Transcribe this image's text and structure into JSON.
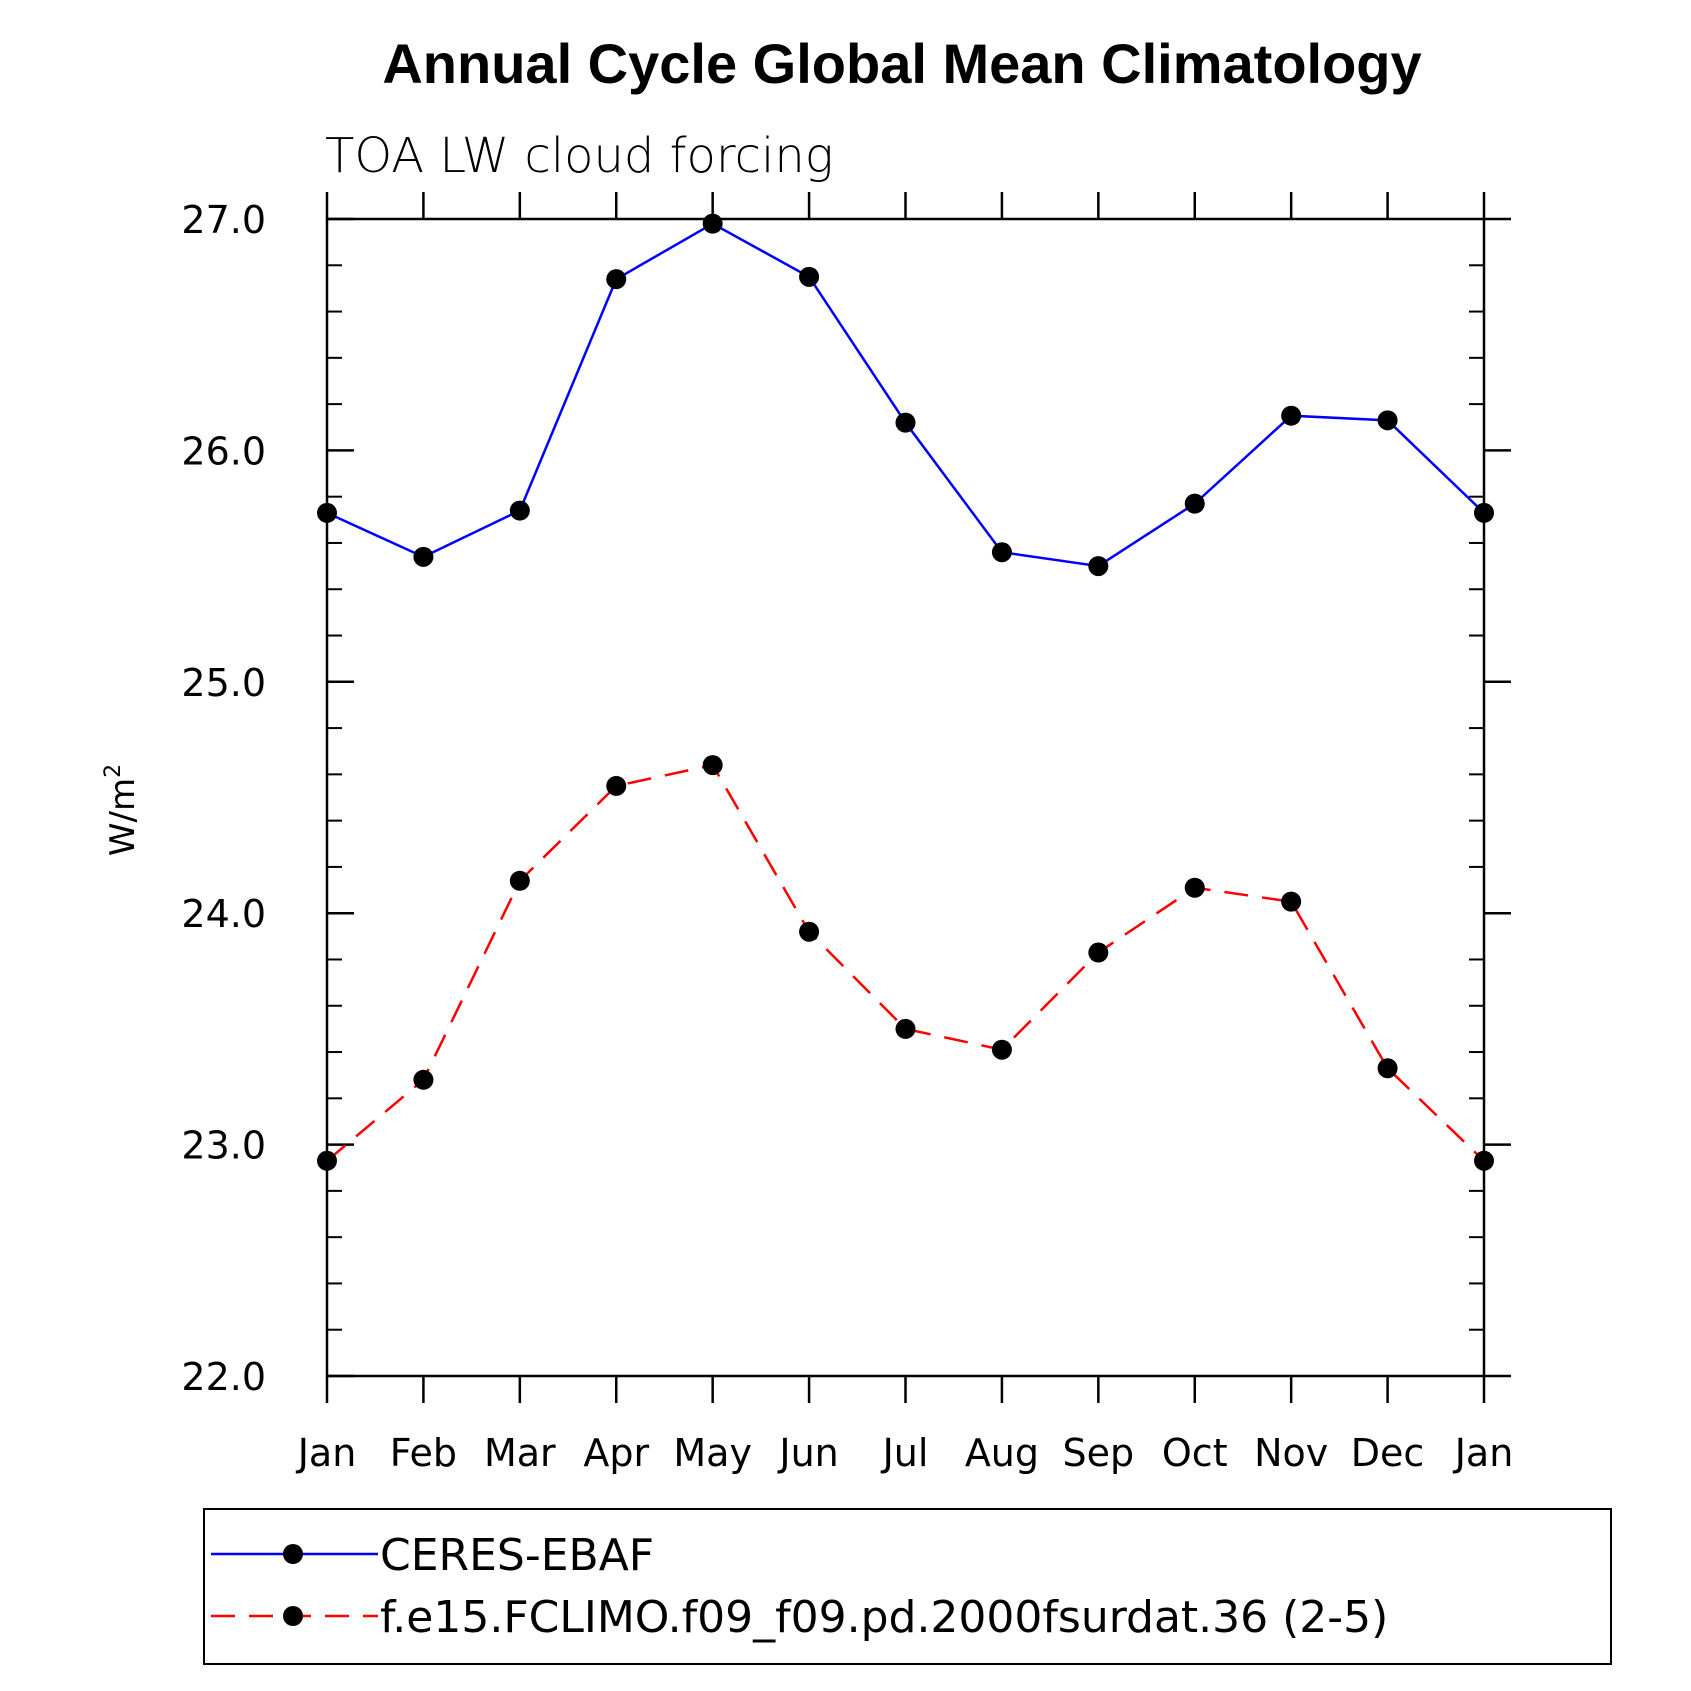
{
  "chart_data": {
    "type": "line",
    "title": "Annual Cycle Global Mean Climatology",
    "subtitle": "TOA LW cloud forcing",
    "xlabel": "",
    "ylabel": "W/m",
    "ylabel_superscript": "2",
    "categories": [
      "Jan",
      "Feb",
      "Mar",
      "Apr",
      "May",
      "Jun",
      "Jul",
      "Aug",
      "Sep",
      "Oct",
      "Nov",
      "Dec",
      "Jan"
    ],
    "ylim": [
      22.0,
      27.0
    ],
    "yticks": [
      "22.0",
      "23.0",
      "24.0",
      "25.0",
      "26.0",
      "27.0"
    ],
    "grid": false,
    "legend_position": "bottom",
    "series": [
      {
        "name": "CERES-EBAF",
        "color": "#0000ff",
        "dash": "solid",
        "marker": "filled-circle",
        "values": [
          25.73,
          25.54,
          25.74,
          26.74,
          26.98,
          26.75,
          26.12,
          25.56,
          25.5,
          25.77,
          26.15,
          26.13,
          25.73
        ]
      },
      {
        "name": "f.e15.FCLIMO.f09_f09.pd.2000fsurdat.36 (2-5)",
        "color": "#ff0000",
        "dash": "dashed",
        "marker": "filled-circle",
        "values": [
          22.93,
          23.28,
          24.14,
          24.55,
          24.64,
          23.92,
          23.5,
          23.41,
          23.83,
          24.11,
          24.05,
          23.33,
          22.93
        ]
      }
    ]
  }
}
